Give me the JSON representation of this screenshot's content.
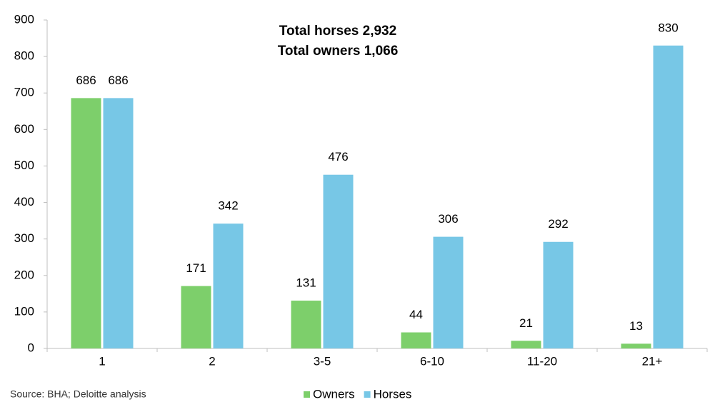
{
  "chart_data": {
    "type": "bar",
    "categories": [
      "1",
      "2",
      "3-5",
      "6-10",
      "11-20",
      "21+"
    ],
    "series": [
      {
        "name": "Owners",
        "color": "#7dcf6b",
        "values": [
          686,
          171,
          131,
          44,
          21,
          13
        ]
      },
      {
        "name": "Horses",
        "color": "#77c7e6",
        "values": [
          686,
          342,
          476,
          306,
          292,
          830
        ]
      }
    ],
    "ylim": [
      0,
      900
    ],
    "yticks": [
      0,
      100,
      200,
      300,
      400,
      500,
      600,
      700,
      800,
      900
    ],
    "annotations": [
      "Total horses 2,932",
      "Total owners 1,066"
    ],
    "source": "Source: BHA; Deloitte analysis",
    "legend": "bottom"
  }
}
